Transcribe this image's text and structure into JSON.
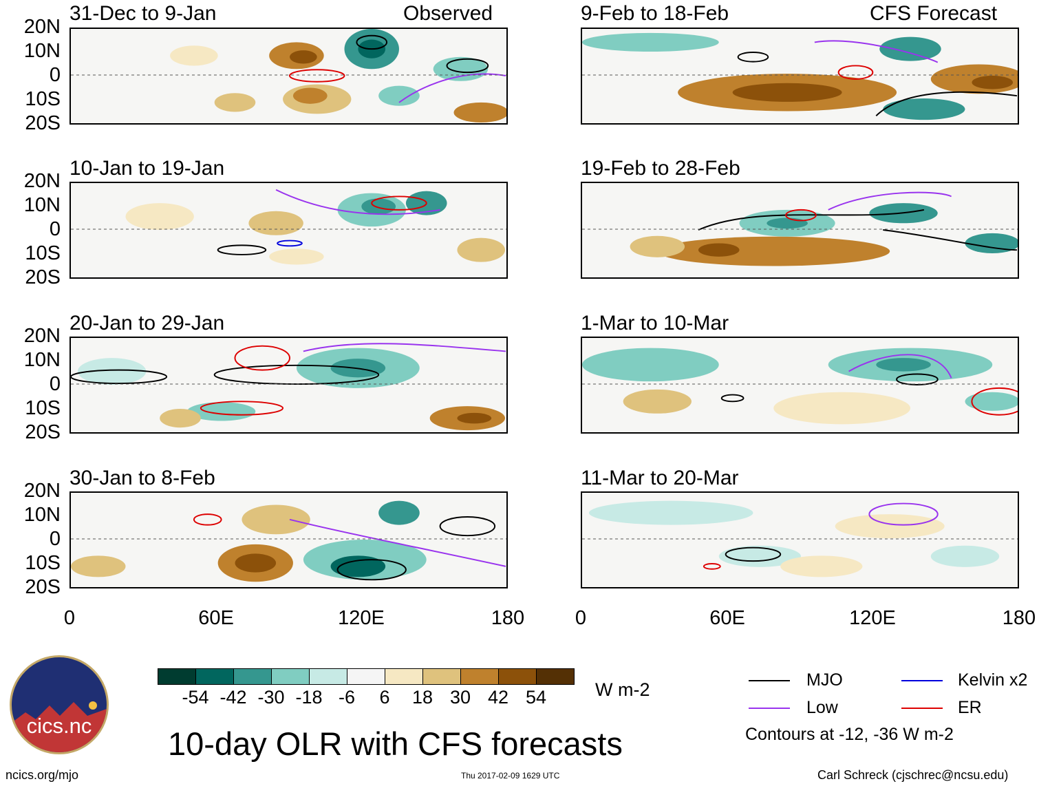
{
  "headings": {
    "observed": "Observed",
    "forecast": "CFS Forecast"
  },
  "observed_panels": [
    {
      "title": "31-Dec to 9-Jan"
    },
    {
      "title": "10-Jan to 19-Jan"
    },
    {
      "title": "20-Jan to 29-Jan"
    },
    {
      "title": "30-Jan to 8-Feb"
    }
  ],
  "forecast_panels": [
    {
      "title": "9-Feb to 18-Feb"
    },
    {
      "title": "19-Feb to 28-Feb"
    },
    {
      "title": "1-Mar to 10-Mar"
    },
    {
      "title": "11-Mar to 20-Mar"
    }
  ],
  "lat_labels": [
    "20N",
    "10N",
    "0",
    "10S",
    "20S"
  ],
  "lon_labels": [
    "0",
    "60E",
    "120E",
    "180"
  ],
  "colorbar": {
    "colors": [
      "#003c30",
      "#01665e",
      "#35978f",
      "#80cdc1",
      "#c7eae5",
      "#f5f5f5",
      "#f6e8c3",
      "#dfc27d",
      "#bf812d",
      "#8c510a",
      "#543005"
    ],
    "labels": [
      "-54",
      "-42",
      "-30",
      "-18",
      "-6",
      "6",
      "18",
      "30",
      "42",
      "54"
    ],
    "units": "W m-2"
  },
  "legend": {
    "items": [
      {
        "label": "MJO",
        "color": "#000000"
      },
      {
        "label": "Kelvin x2",
        "color": "#0000dd"
      },
      {
        "label": "Low",
        "color": "#9933ee"
      },
      {
        "label": "ER",
        "color": "#dd0000"
      }
    ],
    "note": "Contours at -12, -36 W m-2"
  },
  "logo": {
    "text": "cics.nc"
  },
  "main_title": "10-day OLR with CFS forecasts",
  "footer": {
    "url": "ncics.org/mjo",
    "timestamp": "Thu 2017-02-09 1629 UTC",
    "author": "Carl Schreck (cjschrec@ncsu.edu)"
  }
}
